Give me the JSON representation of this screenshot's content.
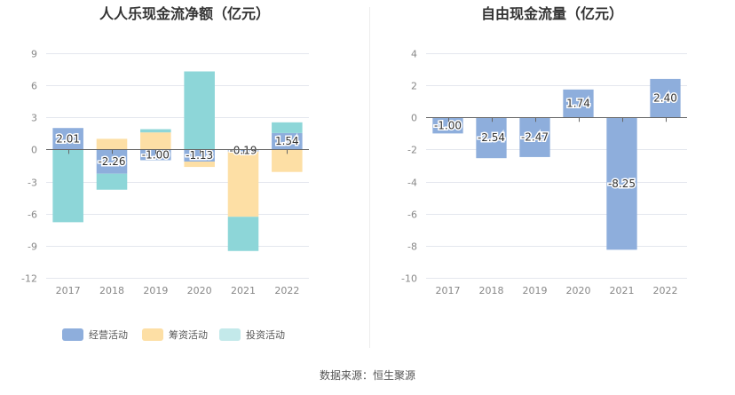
{
  "colors": {
    "operating": "#8eaedc",
    "financing": "#fddfa5",
    "investing": "#8dd6d8",
    "legend_investing": "#c3e9ea",
    "grid": "#e4e7ee",
    "axis_text": "#888888",
    "title_text": "#333333"
  },
  "footer": {
    "source": "数据来源：恒生聚源"
  },
  "chart_data": [
    {
      "type": "bar",
      "title": "人人乐现金流净额（亿元）",
      "stacked": true,
      "categories": [
        "2017",
        "2018",
        "2019",
        "2020",
        "2021",
        "2022"
      ],
      "ylim": [
        -12,
        9
      ],
      "yticks": [
        -12,
        -9,
        -6,
        -3,
        0,
        3,
        6,
        9
      ],
      "grid": true,
      "legend_position": "bottom",
      "labeled_series": "经营活动",
      "series": [
        {
          "name": "经营活动",
          "color_key": "operating",
          "values": [
            2.01,
            -2.26,
            -1.0,
            -1.13,
            -0.19,
            1.54
          ]
        },
        {
          "name": "筹资活动",
          "color_key": "financing",
          "values": [
            0,
            1.0,
            1.6,
            -0.5,
            -6.1,
            -2.1
          ]
        },
        {
          "name": "投资活动",
          "color_key": "investing",
          "values": [
            -6.8,
            -1.5,
            0.3,
            7.3,
            -3.2,
            1.0
          ]
        }
      ],
      "data_labels": [
        "2.01",
        "-2.26",
        "-1.00",
        "-1.13",
        "-0.19",
        "1.54"
      ]
    },
    {
      "type": "bar",
      "title": "自由现金流量（亿元）",
      "categories": [
        "2017",
        "2018",
        "2019",
        "2020",
        "2021",
        "2022"
      ],
      "ylim": [
        -10,
        4
      ],
      "yticks": [
        -10,
        -8,
        -6,
        -4,
        -2,
        0,
        2,
        4
      ],
      "grid": true,
      "series": [
        {
          "name": "",
          "color_key": "operating",
          "values": [
            -1.0,
            -2.54,
            -2.47,
            1.74,
            -8.25,
            2.4
          ]
        }
      ],
      "data_labels": [
        "-1.00",
        "-2.54",
        "-2.47",
        "1.74",
        "-8.25",
        "2.40"
      ]
    }
  ]
}
